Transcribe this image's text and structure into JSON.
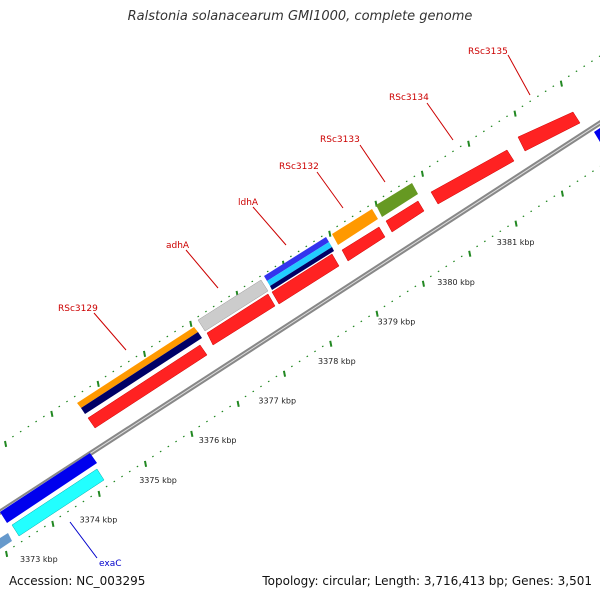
{
  "title": "Ralstonia solanacearum GMI1000, complete genome",
  "footer": {
    "accession": "Accession: NC_003295",
    "summary": "Topology: circular; Length: 3,716,413 bp; Genes: 3,501"
  },
  "colors": {
    "backbone": "#888888",
    "reverse_gene": "#ff1111",
    "forward_gene": "#0000ee",
    "tick_green": "#228822",
    "label_red": "#cc0000",
    "label_blue": "#0000cc"
  },
  "scale_labels": [
    "3373 kbp",
    "3374 kbp",
    "3375 kbp",
    "3376 kbp",
    "3377 kbp",
    "3378 kbp",
    "3379 kbp",
    "3380 kbp",
    "3381 kbp"
  ],
  "gene_labels": [
    {
      "name": "RSc3129",
      "color": "red"
    },
    {
      "name": "adhA",
      "color": "red"
    },
    {
      "name": "ldhA",
      "color": "red"
    },
    {
      "name": "RSc3132",
      "color": "red"
    },
    {
      "name": "RSc3133",
      "color": "red"
    },
    {
      "name": "RSc3134",
      "color": "red"
    },
    {
      "name": "RSc3135",
      "color": "red"
    },
    {
      "name": "exaC",
      "color": "blue"
    }
  ]
}
